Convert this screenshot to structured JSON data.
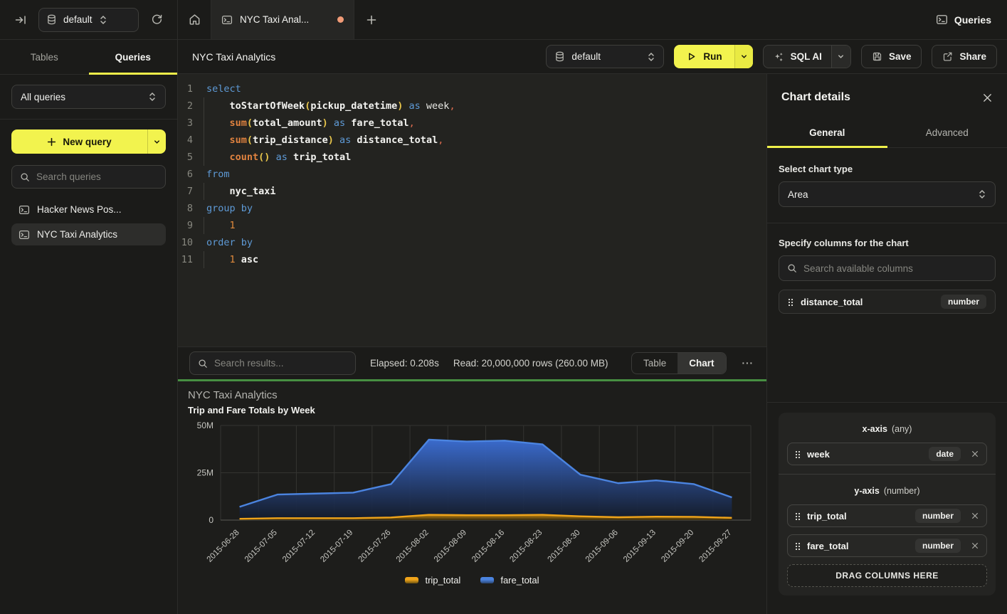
{
  "colors": {
    "accent_yellow": "#f2f34e",
    "success_green": "#478f42",
    "unsaved_dot": "#f09b77",
    "keyword_blue": "#5e9ad6",
    "function_orange": "#e0823f"
  },
  "topbar": {
    "database": "default",
    "tab_title": "NYC Taxi Anal...",
    "queries_label": "Queries"
  },
  "sidebar": {
    "tab_tables": "Tables",
    "tab_queries": "Queries",
    "active_tab": "Queries",
    "filter_value": "All queries",
    "new_query_label": "New query",
    "search_placeholder": "Search queries",
    "items": [
      {
        "label": "Hacker News Pos...",
        "active": false
      },
      {
        "label": "NYC Taxi Analytics",
        "active": true
      }
    ]
  },
  "toolbar": {
    "title": "NYC Taxi Analytics",
    "database": "default",
    "run_label": "Run",
    "sql_ai_label": "SQL AI",
    "save_label": "Save",
    "share_label": "Share"
  },
  "editor": {
    "lines": [
      [
        [
          "kw",
          "select"
        ]
      ],
      [
        [
          "ind",
          "    "
        ],
        [
          "id",
          "toStartOfWeek"
        ],
        [
          "par",
          "("
        ],
        [
          "id",
          "pickup_datetime"
        ],
        [
          "par",
          ")"
        ],
        [
          "pl",
          " "
        ],
        [
          "kw",
          "as"
        ],
        [
          "pl",
          " week"
        ],
        [
          "cm",
          ","
        ]
      ],
      [
        [
          "ind",
          "    "
        ],
        [
          "fn",
          "sum"
        ],
        [
          "par",
          "("
        ],
        [
          "id",
          "total_amount"
        ],
        [
          "par",
          ")"
        ],
        [
          "pl",
          " "
        ],
        [
          "kw",
          "as"
        ],
        [
          "pl",
          " "
        ],
        [
          "id",
          "fare_total"
        ],
        [
          "cm",
          ","
        ]
      ],
      [
        [
          "ind",
          "    "
        ],
        [
          "fn",
          "sum"
        ],
        [
          "par",
          "("
        ],
        [
          "id",
          "trip_distance"
        ],
        [
          "par",
          ")"
        ],
        [
          "pl",
          " "
        ],
        [
          "kw",
          "as"
        ],
        [
          "pl",
          " "
        ],
        [
          "id",
          "distance_total"
        ],
        [
          "cm",
          ","
        ]
      ],
      [
        [
          "ind",
          "    "
        ],
        [
          "fn",
          "count"
        ],
        [
          "par",
          "()"
        ],
        [
          "pl",
          " "
        ],
        [
          "kw",
          "as"
        ],
        [
          "pl",
          " "
        ],
        [
          "id",
          "trip_total"
        ]
      ],
      [
        [
          "kw",
          "from"
        ]
      ],
      [
        [
          "ind",
          "    "
        ],
        [
          "id",
          "nyc_taxi"
        ]
      ],
      [
        [
          "kw",
          "group by"
        ]
      ],
      [
        [
          "ind",
          "    "
        ],
        [
          "num",
          "1"
        ]
      ],
      [
        [
          "kw",
          "order by"
        ]
      ],
      [
        [
          "ind",
          "    "
        ],
        [
          "num",
          "1"
        ],
        [
          "pl",
          " "
        ],
        [
          "id",
          "asc"
        ]
      ]
    ]
  },
  "results": {
    "search_placeholder": "Search results...",
    "elapsed": "Elapsed: 0.208s",
    "read": "Read: 20,000,000 rows (260.00 MB)",
    "view_table": "Table",
    "view_chart": "Chart",
    "active_view": "Chart"
  },
  "chart_data": {
    "type": "area",
    "title": "NYC Taxi Analytics",
    "subtitle": "Trip and Fare Totals by Week",
    "x": [
      "2015-06-28",
      "2015-07-05",
      "2015-07-12",
      "2015-07-19",
      "2015-07-26",
      "2015-08-02",
      "2015-08-09",
      "2015-08-16",
      "2015-08-23",
      "2015-08-30",
      "2015-09-06",
      "2015-09-13",
      "2015-09-20",
      "2015-09-27"
    ],
    "series": [
      {
        "name": "trip_total",
        "color": "#f0a41a",
        "fill_top": "rgba(205,141,16,0.95)",
        "fill_bottom": "rgba(64,47,9,0.85)",
        "swatch_bottom": "#6e5310",
        "values": [
          700000,
          1000000,
          1000000,
          1000000,
          1400000,
          2800000,
          2600000,
          2600000,
          2800000,
          2000000,
          1500000,
          1800000,
          1700000,
          1200000
        ]
      },
      {
        "name": "fare_total",
        "color": "#4b84e0",
        "fill_top": "rgba(60,111,214,0.95)",
        "fill_bottom": "rgba(19,26,40,0.92)",
        "swatch_bottom": "#2a4570",
        "values": [
          7000000,
          13500000,
          14000000,
          14500000,
          19000000,
          42500000,
          41500000,
          42000000,
          40000000,
          24000000,
          19500000,
          21000000,
          19000000,
          12000000
        ]
      }
    ],
    "ylim": [
      0,
      50000000
    ],
    "yticks": [
      {
        "v": 0,
        "label": "0"
      },
      {
        "v": 25000000,
        "label": "25M"
      },
      {
        "v": 50000000,
        "label": "50M"
      }
    ],
    "grid": true,
    "legend_position": "bottom"
  },
  "chart_panel": {
    "title": "Chart details",
    "tab_general": "General",
    "tab_advanced": "Advanced",
    "active_tab": "General",
    "chart_type_label": "Select chart type",
    "chart_type": "Area",
    "columns_label": "Specify columns for the chart",
    "search_placeholder": "Search available columns",
    "available_columns": [
      {
        "name": "distance_total",
        "type": "number"
      }
    ],
    "x_axis": {
      "label": "x-axis",
      "hint": "(any)",
      "items": [
        {
          "name": "week",
          "type": "date"
        }
      ]
    },
    "y_axis": {
      "label": "y-axis",
      "hint": "(number)",
      "items": [
        {
          "name": "trip_total",
          "type": "number"
        },
        {
          "name": "fare_total",
          "type": "number"
        }
      ]
    },
    "drop_label": "DRAG COLUMNS HERE"
  }
}
